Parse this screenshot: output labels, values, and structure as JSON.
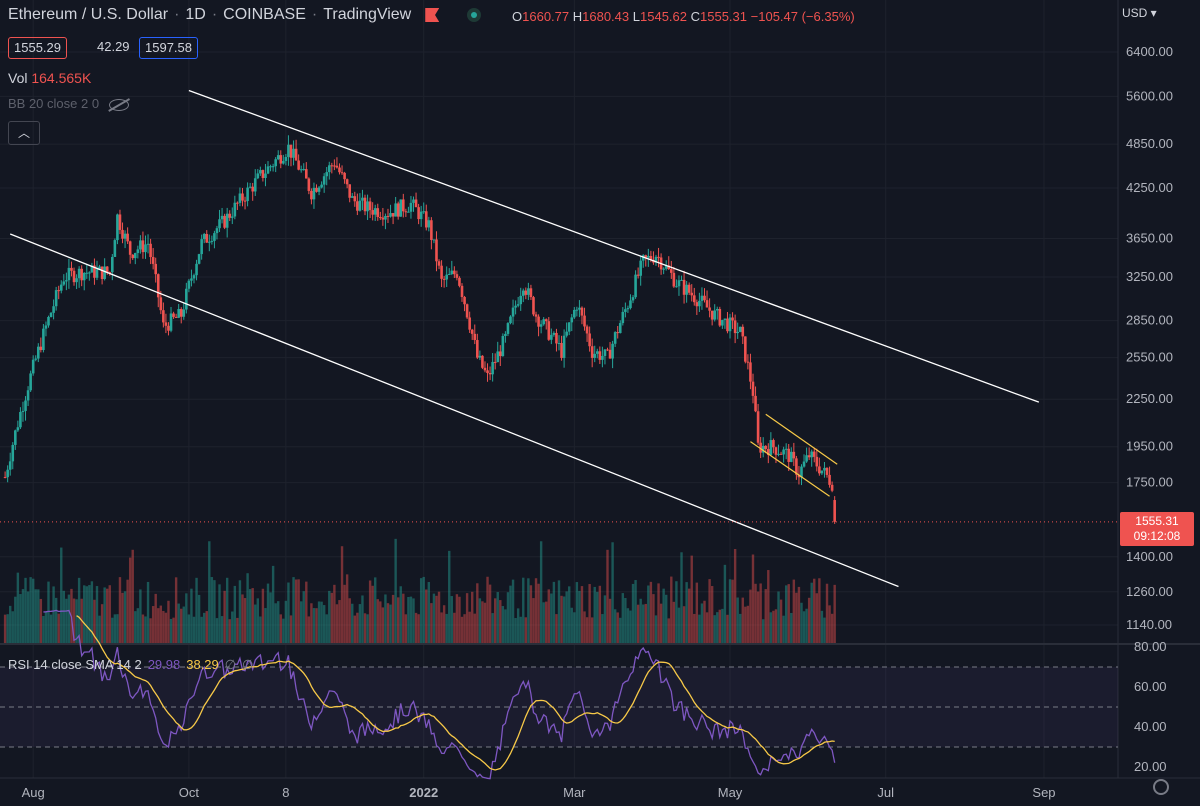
{
  "header": {
    "symbol": "Ethereum / U.S. Dollar",
    "interval": "1D",
    "exchange": "COINBASE",
    "source": "TradingView",
    "o_label": "O",
    "o": "1660.77",
    "h_label": "H",
    "h": "1680.43",
    "l_label": "L",
    "l": "1545.62",
    "c_label": "C",
    "c": "1555.31",
    "change": "−105.47 (−6.35%)"
  },
  "quote": {
    "bid": "1555.29",
    "spread": "42.29",
    "ask": "1597.58"
  },
  "volume": {
    "label": "Vol",
    "value": "164.565K"
  },
  "bb": {
    "label": "BB 20 close 2 0"
  },
  "rsi": {
    "label": "RSI 14 close SMA 14 2",
    "rsi_value": "29.98",
    "sma_value": "38.29",
    "o1": "∅",
    "o2": "∅"
  },
  "currency": "USD",
  "last_price": {
    "price": "1555.31",
    "countdown": "09:12:08"
  },
  "colors": {
    "bg": "#131722",
    "up": "#26a69a",
    "down": "#ef5350",
    "rsi": "#7e57c2",
    "sma": "#f7c948",
    "trend": "#ffffff",
    "channel": "#f7c948"
  },
  "chart_data": {
    "type": "candlestick",
    "price_axis": [
      "6400.00",
      "5600.00",
      "4850.00",
      "4250.00",
      "3650.00",
      "3250.00",
      "2850.00",
      "2550.00",
      "2250.00",
      "1950.00",
      "1750.00",
      "1400.00",
      "1260.00",
      "1140.00"
    ],
    "price_scale": "log",
    "time_axis": [
      "Aug",
      "Oct",
      "8",
      "2022",
      "Mar",
      "May",
      "Jul",
      "Sep"
    ],
    "rsi_axis": [
      "80.00",
      "60.00",
      "40.00",
      "20.00"
    ],
    "rsi_bands": [
      70,
      50,
      30
    ],
    "anchors": [
      [
        "2021-07-21",
        1780
      ],
      [
        "2021-08-03",
        2600
      ],
      [
        "2021-08-13",
        3250
      ],
      [
        "2021-08-20",
        3300
      ],
      [
        "2021-08-31",
        3300
      ],
      [
        "2021-09-03",
        3900
      ],
      [
        "2021-09-08",
        3500
      ],
      [
        "2021-09-15",
        3600
      ],
      [
        "2021-09-21",
        2800
      ],
      [
        "2021-09-28",
        2900
      ],
      [
        "2021-10-06",
        3600
      ],
      [
        "2021-10-15",
        3850
      ],
      [
        "2021-10-29",
        4400
      ],
      [
        "2021-11-09",
        4800
      ],
      [
        "2021-11-18",
        4200
      ],
      [
        "2021-11-27",
        4600
      ],
      [
        "2021-12-04",
        4100
      ],
      [
        "2021-12-10",
        4000
      ],
      [
        "2021-12-18",
        3950
      ],
      [
        "2021-12-27",
        4050
      ],
      [
        "2022-01-03",
        3800
      ],
      [
        "2022-01-08",
        3200
      ],
      [
        "2022-01-14",
        3300
      ],
      [
        "2022-01-22",
        2550
      ],
      [
        "2022-01-26",
        2400
      ],
      [
        "2022-02-02",
        2700
      ],
      [
        "2022-02-09",
        3200
      ],
      [
        "2022-02-14",
        2900
      ],
      [
        "2022-02-24",
        2600
      ],
      [
        "2022-03-02",
        3000
      ],
      [
        "2022-03-08",
        2600
      ],
      [
        "2022-03-14",
        2550
      ],
      [
        "2022-03-22",
        3000
      ],
      [
        "2022-03-28",
        3400
      ],
      [
        "2022-04-02",
        3480
      ],
      [
        "2022-04-10",
        3200
      ],
      [
        "2022-04-18",
        3050
      ],
      [
        "2022-04-25",
        2900
      ],
      [
        "2022-05-05",
        2750
      ],
      [
        "2022-05-10",
        2300
      ],
      [
        "2022-05-12",
        1950
      ],
      [
        "2022-05-18",
        1950
      ],
      [
        "2022-05-24",
        1900
      ],
      [
        "2022-05-28",
        1800
      ],
      [
        "2022-06-01",
        1900
      ],
      [
        "2022-06-07",
        1800
      ],
      [
        "2022-06-10",
        1750
      ],
      [
        "2022-06-11",
        1555
      ]
    ],
    "last": {
      "date": "2022-06-11",
      "open": 1660.77,
      "high": 1680.43,
      "low": 1545.62,
      "close": 1555.31
    },
    "trendlines": [
      {
        "from": [
          "2021-10-01",
          5700
        ],
        "to": [
          "2022-08-30",
          2230
        ]
      },
      {
        "from": [
          "2021-07-23",
          3700
        ],
        "to": [
          "2022-07-06",
          1280
        ]
      }
    ],
    "channel_lines": [
      {
        "from": [
          "2022-05-15",
          2150
        ],
        "to": [
          "2022-06-12",
          1850
        ]
      },
      {
        "from": [
          "2022-05-09",
          1980
        ],
        "to": [
          "2022-06-09",
          1680
        ]
      }
    ]
  }
}
